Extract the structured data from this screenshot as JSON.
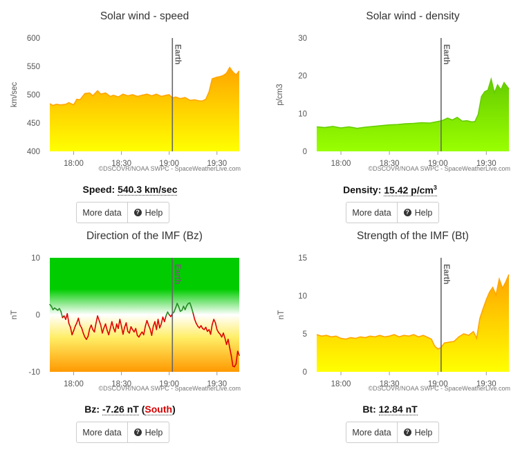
{
  "chart_data": [
    {
      "id": "speed",
      "type": "area",
      "title": "Solar wind - speed",
      "ylabel": "km/sec",
      "ylim": [
        400,
        600
      ],
      "yticks": [
        "400",
        "450",
        "500",
        "550",
        "600"
      ],
      "xticks": [
        "18:00",
        "18:30",
        "19:00",
        "19:30"
      ],
      "xrange_minutes": [
        1065,
        1184
      ],
      "marker": {
        "label": "Earth",
        "time_minutes": 1142
      },
      "credit": "©DSCOVR/NOAA SWPC - SpaceWeatherLive.com",
      "gradient": [
        "#ffa500",
        "#ffff00"
      ],
      "series": [
        {
          "x": [
            1065,
            1067,
            1069,
            1072,
            1075,
            1077,
            1080,
            1082,
            1084,
            1087,
            1090,
            1092,
            1095,
            1097,
            1100,
            1103,
            1105,
            1108,
            1111,
            1114,
            1117,
            1120,
            1123,
            1126,
            1129,
            1132,
            1135,
            1138,
            1140,
            1142,
            1144,
            1147,
            1150,
            1153,
            1156,
            1159,
            1161,
            1163,
            1165,
            1167,
            1170,
            1172,
            1174,
            1176,
            1178,
            1180,
            1182,
            1184
          ],
          "values": [
            484,
            481,
            483,
            482,
            483,
            486,
            482,
            492,
            491,
            502,
            503,
            498,
            507,
            501,
            503,
            497,
            499,
            496,
            501,
            498,
            500,
            497,
            499,
            501,
            498,
            501,
            497,
            499,
            500,
            494,
            496,
            493,
            495,
            490,
            491,
            489,
            489,
            492,
            505,
            528,
            531,
            532,
            534,
            538,
            548,
            540,
            535,
            542
          ]
        }
      ],
      "readout": {
        "label": "Speed:",
        "value": "540.3 km/sec"
      }
    },
    {
      "id": "density",
      "type": "area",
      "title": "Solar wind - density",
      "ylabel": "p/cm3",
      "ylim": [
        0,
        30
      ],
      "yticks": [
        "0",
        "10",
        "20",
        "30"
      ],
      "xticks": [
        "18:00",
        "18:30",
        "19:00",
        "19:30"
      ],
      "xrange_minutes": [
        1065,
        1184
      ],
      "marker": {
        "label": "Earth",
        "time_minutes": 1142
      },
      "credit": "©DSCOVR/NOAA SWPC - SpaceWeatherLive.com",
      "gradient": [
        "#66cc00",
        "#99ff00"
      ],
      "series": [
        {
          "x": [
            1065,
            1070,
            1075,
            1080,
            1085,
            1090,
            1095,
            1100,
            1105,
            1110,
            1115,
            1120,
            1125,
            1130,
            1135,
            1140,
            1143,
            1146,
            1149,
            1152,
            1155,
            1158,
            1161,
            1163,
            1165,
            1167,
            1169,
            1171,
            1173,
            1175,
            1177,
            1179,
            1181,
            1184
          ],
          "values": [
            6.5,
            6.3,
            6.6,
            6.2,
            6.5,
            6.1,
            6.4,
            6.6,
            6.8,
            7.0,
            7.1,
            7.3,
            7.4,
            7.6,
            7.5,
            7.9,
            8.2,
            8.8,
            8.3,
            9.0,
            8.0,
            8.1,
            7.8,
            7.9,
            9.8,
            14.5,
            15.8,
            16.2,
            19.1,
            15.5,
            17.6,
            16.3,
            18.2,
            16.5
          ]
        }
      ],
      "readout": {
        "label": "Density:",
        "value": "15.42 p/cm",
        "sup": "3"
      }
    },
    {
      "id": "bz",
      "type": "line",
      "title": "Direction of the IMF (Bz)",
      "ylabel": "nT",
      "ylim": [
        -10,
        10
      ],
      "yticks": [
        "-10",
        "0",
        "10"
      ],
      "xticks": [
        "18:00",
        "18:30",
        "19:00",
        "19:30"
      ],
      "xrange_minutes": [
        1065,
        1184
      ],
      "marker": {
        "label": "Earth",
        "time_minutes": 1142
      },
      "credit": "©DSCOVR/NOAA SWPC - SpaceWeatherLive.com",
      "colors": {
        "north": "#228b22",
        "south": "#dd0000",
        "north_band": "#00cc00",
        "south_band": "#ff9900"
      },
      "series": [
        {
          "x": [
            1065,
            1066,
            1067,
            1068,
            1069,
            1070,
            1071,
            1072,
            1073,
            1074,
            1075,
            1076,
            1077,
            1078,
            1079,
            1080,
            1081,
            1082,
            1083,
            1084,
            1085,
            1086,
            1087,
            1088,
            1089,
            1090,
            1091,
            1092,
            1093,
            1094,
            1095,
            1096,
            1097,
            1098,
            1099,
            1100,
            1101,
            1102,
            1103,
            1104,
            1105,
            1106,
            1107,
            1108,
            1109,
            1110,
            1111,
            1112,
            1113,
            1114,
            1115,
            1116,
            1117,
            1118,
            1119,
            1120,
            1121,
            1122,
            1123,
            1124,
            1125,
            1126,
            1127,
            1128,
            1129,
            1130,
            1131,
            1132,
            1133,
            1134,
            1135,
            1136,
            1137,
            1138,
            1139,
            1140,
            1141,
            1142,
            1143,
            1144,
            1145,
            1146,
            1147,
            1148,
            1149,
            1150,
            1151,
            1152,
            1153,
            1154,
            1155,
            1156,
            1157,
            1158,
            1159,
            1160,
            1161,
            1162,
            1163,
            1164,
            1165,
            1166,
            1167,
            1168,
            1169,
            1170,
            1171,
            1172,
            1173,
            1174,
            1175,
            1176,
            1177,
            1178,
            1179,
            1180,
            1181,
            1182,
            1183,
            1184
          ],
          "values": [
            1.8,
            1.5,
            0.9,
            1.2,
            1.0,
            0.8,
            1.1,
            0.6,
            -0.5,
            -0.2,
            -0.8,
            0.2,
            -1.5,
            -2.2,
            -3.5,
            -2.8,
            -2.0,
            -1.4,
            -0.6,
            -1.8,
            -2.3,
            -3.2,
            -3.9,
            -4.3,
            -3.8,
            -2.5,
            -1.8,
            -2.6,
            -3.0,
            -1.5,
            -0.2,
            -1.0,
            -1.8,
            -3.2,
            -2.3,
            -1.6,
            -2.7,
            -3.5,
            -2.4,
            -1.2,
            -2.3,
            -3.0,
            -1.6,
            -2.4,
            -0.8,
            -2.0,
            -3.4,
            -2.2,
            -1.4,
            -2.9,
            -3.2,
            -2.1,
            -2.6,
            -3.0,
            -2.4,
            -3.6,
            -3.9,
            -3.4,
            -3.0,
            -3.5,
            -2.0,
            -1.0,
            -1.8,
            -2.5,
            -3.6,
            -2.0,
            -1.2,
            -2.6,
            -0.8,
            -2.3,
            -1.6,
            -0.4,
            -1.2,
            -0.2,
            0.5,
            0.0,
            -0.3,
            0.2,
            0.5,
            1.2,
            2.0,
            1.4,
            0.6,
            0.8,
            1.5,
            0.9,
            1.6,
            2.0,
            2.1,
            1.3,
            0.3,
            -0.8,
            -1.5,
            -2.0,
            -2.3,
            -1.9,
            -2.4,
            -2.6,
            -2.2,
            -2.9,
            -2.6,
            -3.4,
            -1.7,
            -0.8,
            -1.4,
            -2.6,
            -3.1,
            -3.4,
            -3.9,
            -3.2,
            -4.1,
            -5.2,
            -4.3,
            -5.8,
            -7.2,
            -9.0,
            -9.1,
            -8.6,
            -6.4,
            -7.1
          ]
        }
      ],
      "readout": {
        "label": "Bz:",
        "value": "-7.26 nT",
        "dir_open": " (",
        "direction": "South",
        "dir_close": ")"
      }
    },
    {
      "id": "bt",
      "type": "area",
      "title": "Strength of the IMF (Bt)",
      "ylabel": "nT",
      "ylim": [
        0,
        15
      ],
      "yticks": [
        "0",
        "5",
        "10",
        "15"
      ],
      "xticks": [
        "18:00",
        "18:30",
        "19:00",
        "19:30"
      ],
      "xrange_minutes": [
        1065,
        1184
      ],
      "marker": {
        "label": "Earth",
        "time_minutes": 1142
      },
      "credit": "©DSCOVR/NOAA SWPC - SpaceWeatherLive.com",
      "gradient": [
        "#ffa500",
        "#ffff00"
      ],
      "series": [
        {
          "x": [
            1065,
            1068,
            1071,
            1074,
            1077,
            1080,
            1083,
            1086,
            1089,
            1092,
            1095,
            1098,
            1101,
            1104,
            1107,
            1110,
            1113,
            1116,
            1119,
            1122,
            1125,
            1128,
            1131,
            1134,
            1136,
            1138,
            1140,
            1142,
            1144,
            1147,
            1150,
            1153,
            1156,
            1159,
            1162,
            1164,
            1166,
            1168,
            1170,
            1172,
            1174,
            1176,
            1178,
            1180,
            1182,
            1184
          ],
          "values": [
            4.9,
            4.7,
            4.8,
            4.6,
            4.7,
            4.4,
            4.3,
            4.5,
            4.4,
            4.6,
            4.5,
            4.7,
            4.6,
            4.8,
            4.6,
            4.7,
            4.9,
            4.6,
            4.8,
            4.7,
            4.9,
            4.6,
            4.8,
            4.5,
            4.3,
            3.4,
            3.0,
            3.2,
            3.8,
            3.9,
            4.0,
            4.6,
            5.0,
            4.8,
            5.3,
            4.4,
            7.0,
            8.3,
            9.5,
            10.5,
            11.1,
            10.1,
            12.2,
            11.0,
            11.8,
            12.8
          ]
        }
      ],
      "readout": {
        "label": "Bt:",
        "value": "12.84 nT"
      }
    }
  ],
  "buttons": {
    "more_data": "More data",
    "help": "Help",
    "help_icon": "question-circle-icon"
  }
}
